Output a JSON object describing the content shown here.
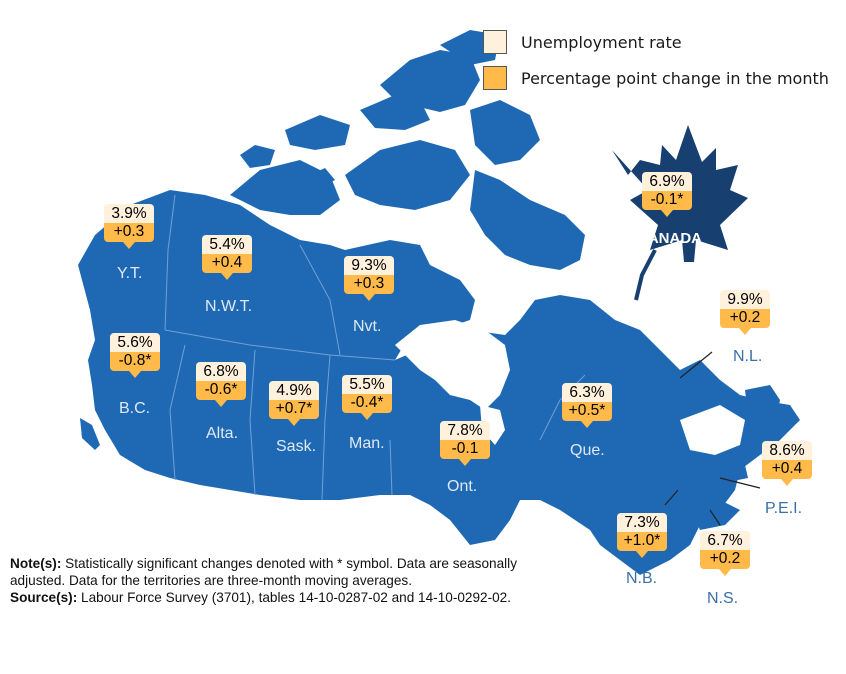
{
  "legend": {
    "rate_label": "Unemployment rate",
    "change_label": "Percentage point change in the month",
    "rate_color": "#fff1dc",
    "change_color": "#ffba4a"
  },
  "map_color": "#1f69b4",
  "regions": [
    {
      "id": "yt",
      "name": "Y.T.",
      "rate": "3.9%",
      "change": "+0.3"
    },
    {
      "id": "nwt",
      "name": "N.W.T.",
      "rate": "5.4%",
      "change": "+0.4"
    },
    {
      "id": "nvt",
      "name": "Nvt.",
      "rate": "9.3%",
      "change": "+0.3"
    },
    {
      "id": "bc",
      "name": "B.C.",
      "rate": "5.6%",
      "change": "-0.8*"
    },
    {
      "id": "alta",
      "name": "Alta.",
      "rate": "6.8%",
      "change": "-0.6*"
    },
    {
      "id": "sask",
      "name": "Sask.",
      "rate": "4.9%",
      "change": "+0.7*"
    },
    {
      "id": "man",
      "name": "Man.",
      "rate": "5.5%",
      "change": "-0.4*"
    },
    {
      "id": "ont",
      "name": "Ont.",
      "rate": "7.8%",
      "change": "-0.1"
    },
    {
      "id": "que",
      "name": "Que.",
      "rate": "6.3%",
      "change": "+0.5*"
    },
    {
      "id": "nl",
      "name": "N.L.",
      "rate": "9.9%",
      "change": "+0.2"
    },
    {
      "id": "pei",
      "name": "P.E.I.",
      "rate": "8.6%",
      "change": "+0.4"
    },
    {
      "id": "nb",
      "name": "N.B.",
      "rate": "7.3%",
      "change": "+1.0*"
    },
    {
      "id": "ns",
      "name": "N.S.",
      "rate": "6.7%",
      "change": "+0.2"
    }
  ],
  "canada": {
    "name": "CANADA",
    "rate": "6.9%",
    "change": "-0.1*"
  },
  "notes": {
    "note_label": "Note(s):",
    "note_text": "Statistically significant changes denoted with * symbol. Data are seasonally adjusted. Data for the territories are three-month moving averages.",
    "source_label": "Source(s):",
    "source_text": "Labour Force Survey (3701), tables 14-10-0287-02 and 14-10-0292-02."
  }
}
